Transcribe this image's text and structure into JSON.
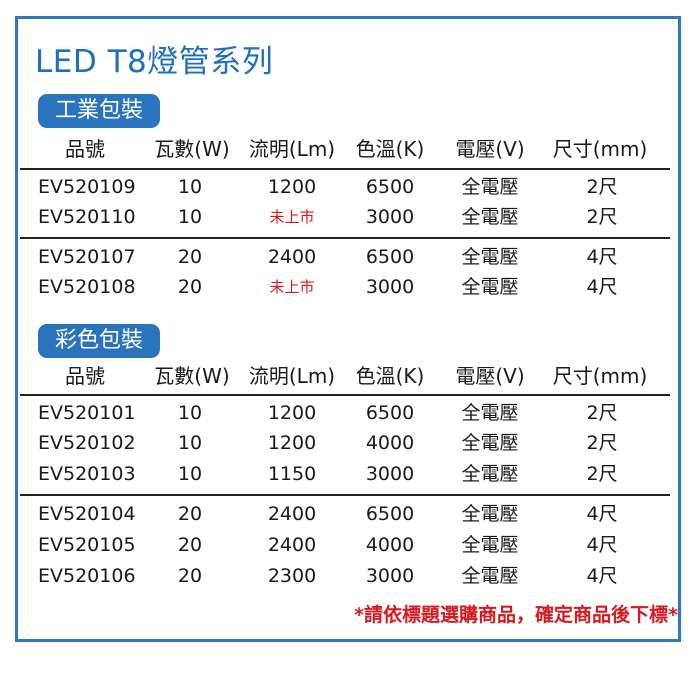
{
  "title": "LED T8燈管系列",
  "headers": [
    "品號",
    "瓦數(W)",
    "流明(Lm)",
    "色溫(K)",
    "電壓(V)",
    "尺寸(mm)"
  ],
  "sections": [
    {
      "label": "工業包裝",
      "groups": [
        [
          [
            "EV520109",
            "10",
            "1200",
            "6500",
            "全電壓",
            "2尺"
          ],
          [
            "EV520110",
            "10",
            "未上市",
            "3000",
            "全電壓",
            "2尺"
          ]
        ],
        [
          [
            "EV520107",
            "20",
            "2400",
            "6500",
            "全電壓",
            "4尺"
          ],
          [
            "EV520108",
            "20",
            "未上市",
            "3000",
            "全電壓",
            "4尺"
          ]
        ]
      ]
    },
    {
      "label": "彩色包裝",
      "groups": [
        [
          [
            "EV520101",
            "10",
            "1200",
            "6500",
            "全電壓",
            "2尺"
          ],
          [
            "EV520102",
            "10",
            "1200",
            "4000",
            "全電壓",
            "2尺"
          ],
          [
            "EV520103",
            "10",
            "1150",
            "3000",
            "全電壓",
            "2尺"
          ]
        ],
        [
          [
            "EV520104",
            "20",
            "2400",
            "6500",
            "全電壓",
            "4尺"
          ],
          [
            "EV520105",
            "20",
            "2400",
            "4000",
            "全電壓",
            "4尺"
          ],
          [
            "EV520106",
            "20",
            "2300",
            "3000",
            "全電壓",
            "4尺"
          ]
        ]
      ]
    }
  ],
  "footnote": "*請依標題選購商品，確定商品後下標*",
  "colors": {
    "accent": "#2a73bd",
    "title": "#1f6fbf",
    "warning": "#d9181f",
    "border": "#2e78c2"
  }
}
